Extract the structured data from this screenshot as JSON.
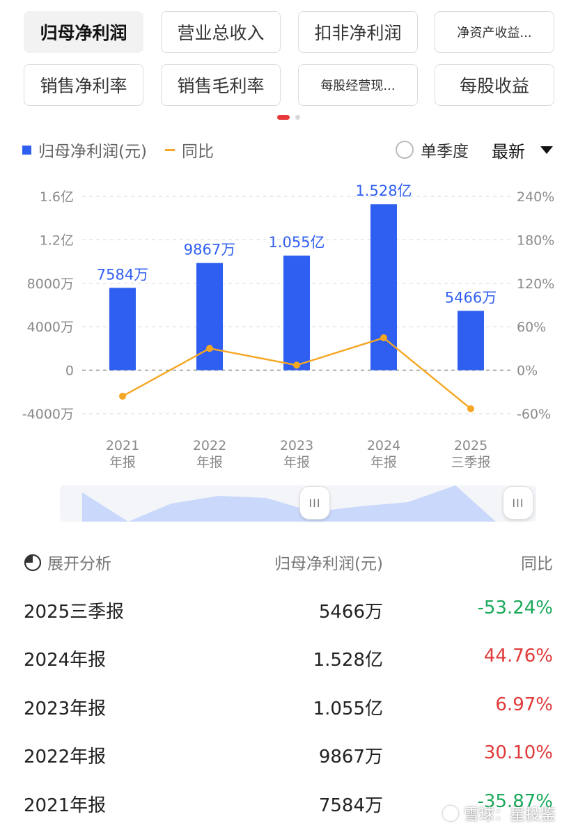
{
  "tabs": [
    {
      "label": "归母净利润",
      "active": true
    },
    {
      "label": "营业总收入",
      "active": false
    },
    {
      "label": "扣非净利润",
      "active": false
    },
    {
      "label": "净资产收益...",
      "active": false
    },
    {
      "label": "销售净利率",
      "active": false
    },
    {
      "label": "销售毛利率",
      "active": false
    },
    {
      "label": "每股经营现...",
      "active": false
    },
    {
      "label": "每股收益",
      "active": false
    }
  ],
  "legend": {
    "bar_label": "归母净利润(元)",
    "line_label": "同比"
  },
  "controls": {
    "single_quarter": "单季度",
    "latest": "最新"
  },
  "colors": {
    "bar": "#2f5ff0",
    "line": "#f5a623",
    "up": "#e03a3a",
    "down": "#1aa95a"
  },
  "slider": {
    "handle_glyph": "III"
  },
  "chart_data": {
    "type": "bar",
    "categories": [
      [
        "2021",
        "年报"
      ],
      [
        "2022",
        "年报"
      ],
      [
        "2023",
        "年报"
      ],
      [
        "2024",
        "年报"
      ],
      [
        "2025",
        "三季报"
      ]
    ],
    "series": [
      {
        "name": "归母净利润(元)",
        "type": "bar",
        "axis": "left",
        "values": [
          7584,
          9867,
          10550,
          15280,
          5466
        ],
        "labels": [
          "7584万",
          "9867万",
          "1.055亿",
          "1.528亿",
          "5466万"
        ]
      },
      {
        "name": "同比",
        "type": "line",
        "axis": "right",
        "values": [
          -35.87,
          30.1,
          6.97,
          44.76,
          -53.24
        ]
      }
    ],
    "y_left": {
      "ticks": [
        16000,
        12000,
        8000,
        4000,
        0,
        -4000
      ],
      "tick_labels": [
        "1.6亿",
        "1.2亿",
        "8000万",
        "4000万",
        "0",
        "-4000万"
      ],
      "range": [
        -4000,
        16000
      ]
    },
    "y_right": {
      "ticks": [
        240,
        180,
        120,
        60,
        0,
        -60
      ],
      "tick_labels": [
        "240%",
        "180%",
        "120%",
        "60%",
        "0%",
        "-60%"
      ],
      "range": [
        -60,
        240
      ]
    },
    "grid": true
  },
  "table": {
    "header": {
      "expand": "展开分析",
      "value": "归母净利润(元)",
      "yoy": "同比"
    },
    "rows": [
      {
        "period": "2025三季报",
        "value": "5466万",
        "yoy": "-53.24%",
        "dir": "down"
      },
      {
        "period": "2024年报",
        "value": "1.528亿",
        "yoy": "44.76%",
        "dir": "up"
      },
      {
        "period": "2023年报",
        "value": "1.055亿",
        "yoy": "6.97%",
        "dir": "up"
      },
      {
        "period": "2022年报",
        "value": "9867万",
        "yoy": "30.10%",
        "dir": "up"
      },
      {
        "period": "2021年报",
        "value": "7584万",
        "yoy": "-35.87%",
        "dir": "down"
      }
    ]
  },
  "watermark": "雪球：星投鉴"
}
